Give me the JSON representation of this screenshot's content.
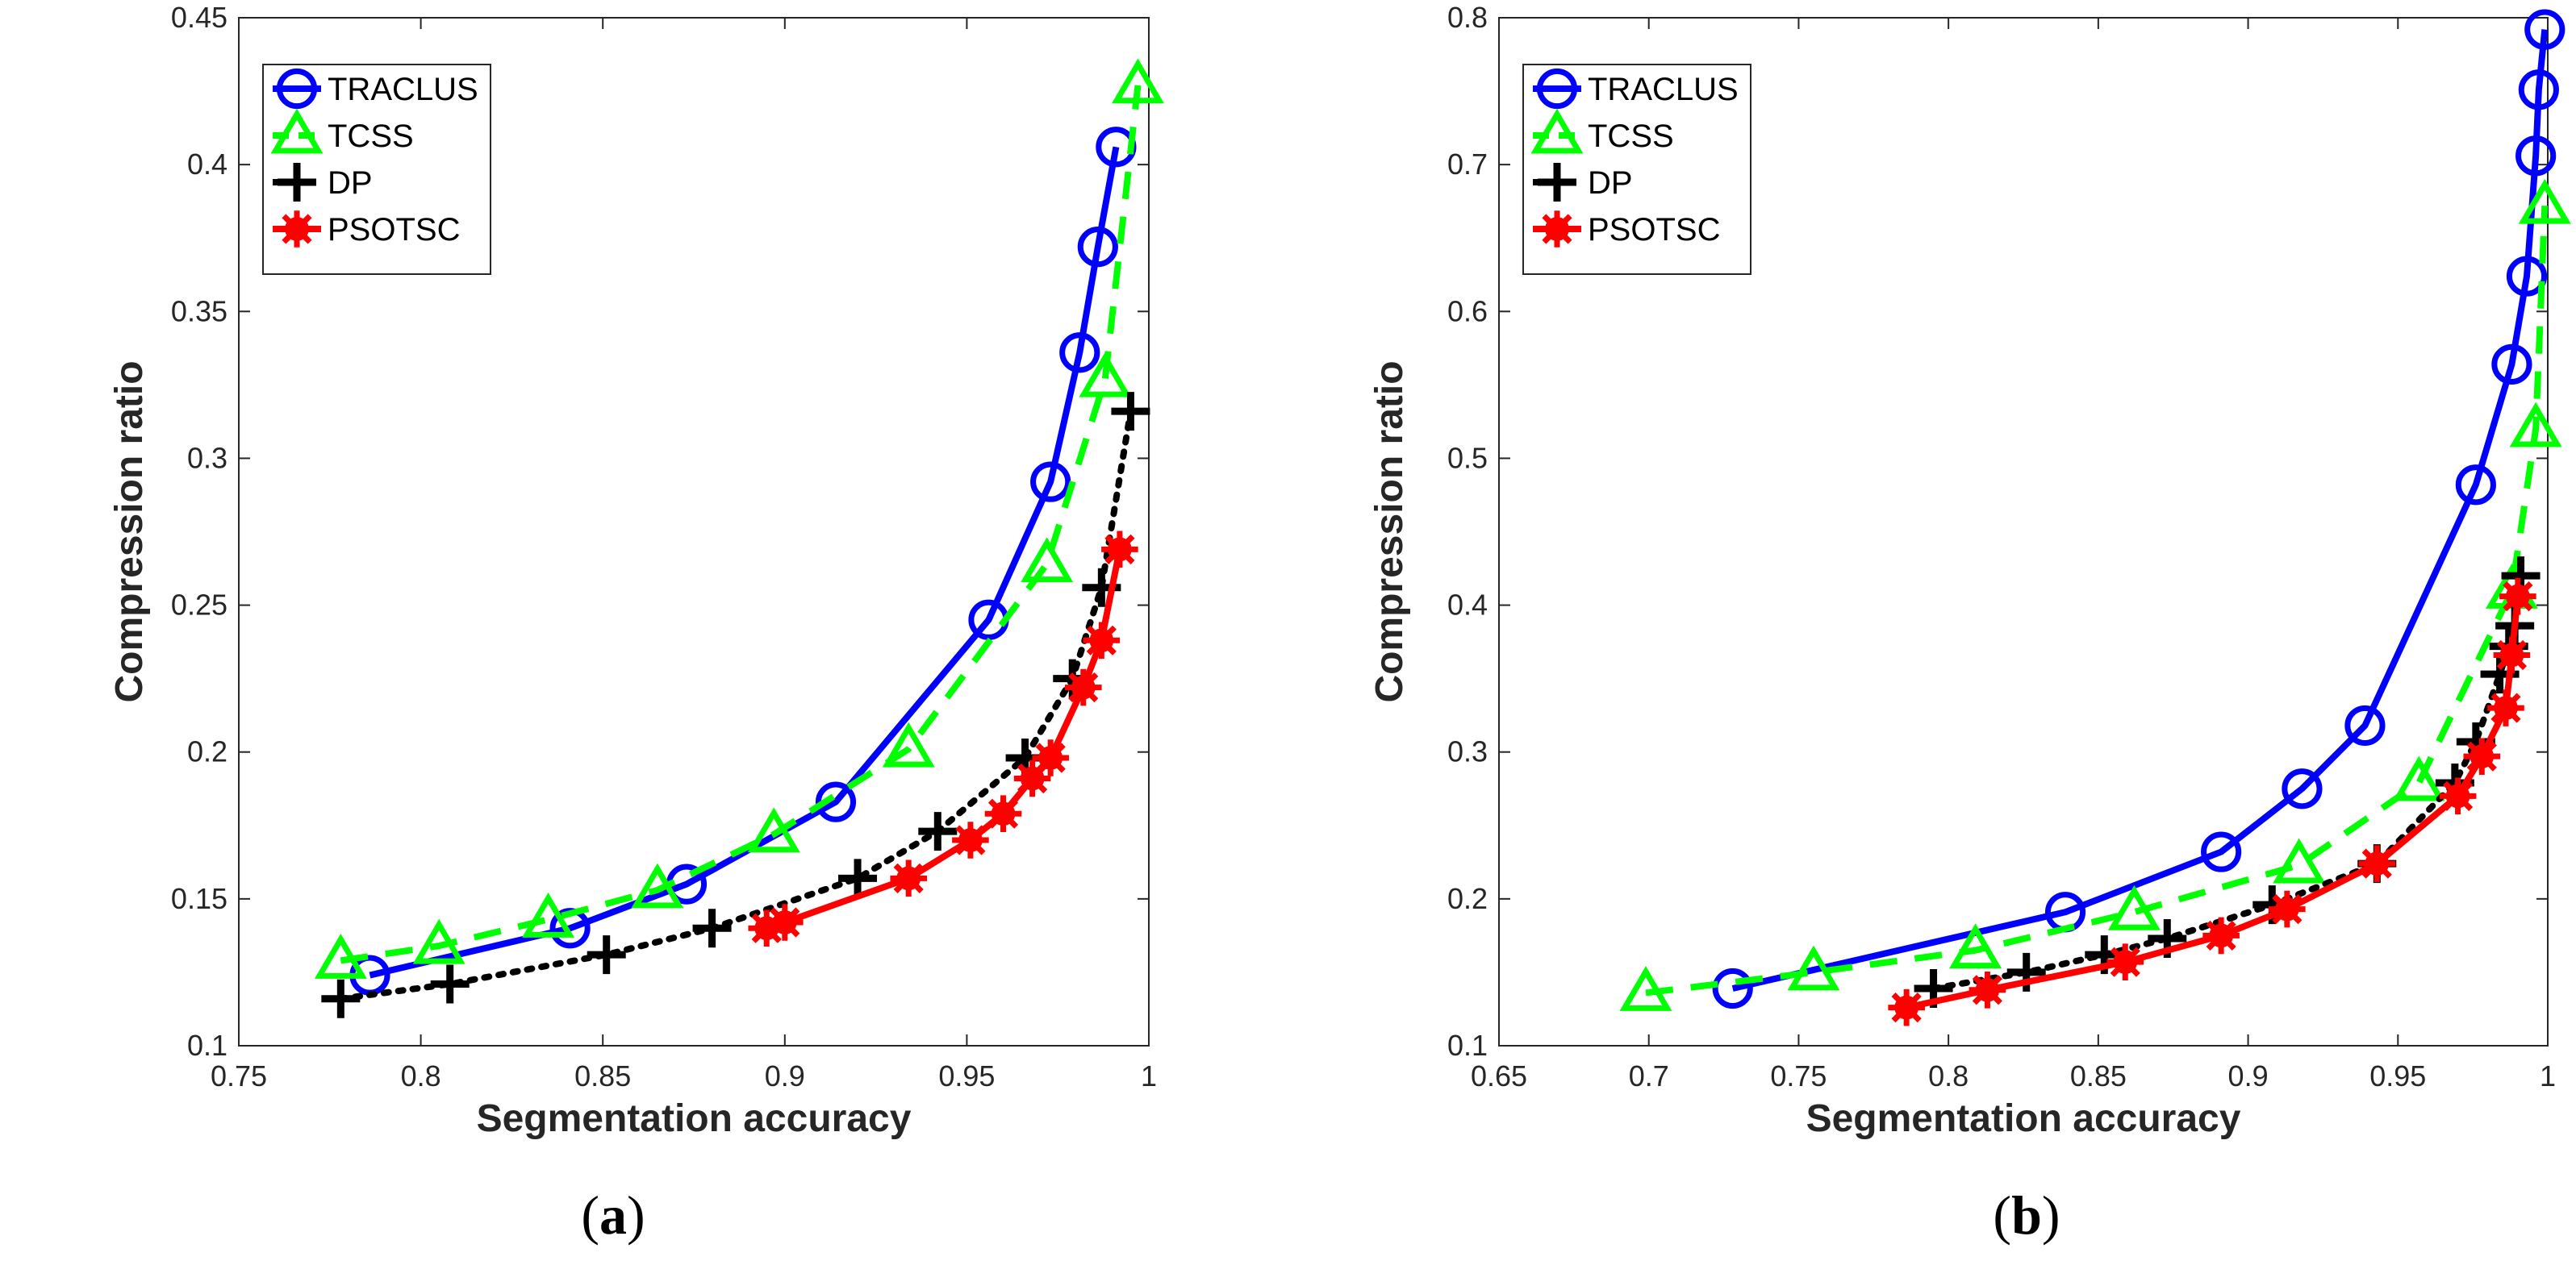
{
  "chart_data": [
    {
      "type": "line",
      "panel_id": "a",
      "caption": "(a)",
      "caption_letter": "a",
      "xlabel": "Segmentation accuracy",
      "ylabel": "Compression ratio",
      "xlim": [
        0.75,
        1.0
      ],
      "ylim": [
        0.1,
        0.45
      ],
      "xticks": [
        0.75,
        0.8,
        0.85,
        0.9,
        0.95,
        1.0
      ],
      "yticks": [
        0.1,
        0.15,
        0.2,
        0.25,
        0.3,
        0.35,
        0.4,
        0.45
      ],
      "xtick_labels": [
        "0.75",
        "0.8",
        "0.85",
        "0.9",
        "0.95",
        "1"
      ],
      "ytick_labels": [
        "0.1",
        "0.15",
        "0.2",
        "0.25",
        "0.3",
        "0.35",
        "0.4",
        "0.45"
      ],
      "legend_position": "top-left",
      "series": [
        {
          "name": "TRACLUS",
          "color": "#0000ff",
          "line": "solid",
          "marker": "circle",
          "x": [
            0.786,
            0.841,
            0.873,
            0.914,
            0.956,
            0.973,
            0.981,
            0.986,
            0.991
          ],
          "y": [
            0.124,
            0.14,
            0.155,
            0.183,
            0.245,
            0.292,
            0.336,
            0.372,
            0.406
          ]
        },
        {
          "name": "TCSS",
          "color": "#00ff00",
          "line": "dashed",
          "marker": "triangle",
          "x": [
            0.778,
            0.805,
            0.835,
            0.865,
            0.897,
            0.934,
            0.972,
            0.988,
            0.997
          ],
          "y": [
            0.129,
            0.134,
            0.143,
            0.153,
            0.172,
            0.201,
            0.264,
            0.327,
            0.427
          ]
        },
        {
          "name": "DP",
          "color": "#000000",
          "line": "dotted",
          "marker": "plus",
          "x": [
            0.778,
            0.808,
            0.851,
            0.88,
            0.92,
            0.942,
            0.966,
            0.979,
            0.987,
            0.995
          ],
          "y": [
            0.116,
            0.121,
            0.131,
            0.14,
            0.157,
            0.173,
            0.198,
            0.225,
            0.256,
            0.316
          ]
        },
        {
          "name": "PSOTSC",
          "color": "#ff0000",
          "line": "solid",
          "marker": "star",
          "x": [
            0.895,
            0.9,
            0.934,
            0.951,
            0.96,
            0.968,
            0.973,
            0.982,
            0.987,
            0.992
          ],
          "y": [
            0.14,
            0.142,
            0.157,
            0.17,
            0.179,
            0.191,
            0.198,
            0.222,
            0.238,
            0.269
          ]
        }
      ]
    },
    {
      "type": "line",
      "panel_id": "b",
      "caption": "(b)",
      "caption_letter": "b",
      "xlabel": "Segmentation accuracy",
      "ylabel": "Compression ratio",
      "xlim": [
        0.65,
        1.0
      ],
      "ylim": [
        0.1,
        0.8
      ],
      "xticks": [
        0.65,
        0.7,
        0.75,
        0.8,
        0.85,
        0.9,
        0.95,
        1.0
      ],
      "yticks": [
        0.1,
        0.2,
        0.3,
        0.4,
        0.5,
        0.6,
        0.7,
        0.8
      ],
      "xtick_labels": [
        "0.65",
        "0.7",
        "0.75",
        "0.8",
        "0.85",
        "0.9",
        "0.95",
        "1"
      ],
      "ytick_labels": [
        "0.1",
        "0.2",
        "0.3",
        "0.4",
        "0.5",
        "0.6",
        "0.7",
        "0.8"
      ],
      "legend_position": "top-left",
      "series": [
        {
          "name": "TRACLUS",
          "color": "#0000ff",
          "line": "solid",
          "marker": "circle",
          "x": [
            0.728,
            0.839,
            0.891,
            0.918,
            0.939,
            0.976,
            0.988,
            0.993,
            0.996,
            0.997,
            0.999
          ],
          "y": [
            0.139,
            0.191,
            0.232,
            0.275,
            0.318,
            0.482,
            0.564,
            0.624,
            0.706,
            0.751,
            0.792
          ]
        },
        {
          "name": "TCSS",
          "color": "#00ff00",
          "line": "dashed",
          "marker": "triangle",
          "x": [
            0.699,
            0.755,
            0.809,
            0.862,
            0.917,
            0.957,
            0.988,
            0.996,
            0.999
          ],
          "y": [
            0.136,
            0.15,
            0.165,
            0.191,
            0.223,
            0.279,
            0.41,
            0.52,
            0.672
          ]
        },
        {
          "name": "DP",
          "color": "#000000",
          "line": "dotted",
          "marker": "plus",
          "x": [
            0.795,
            0.826,
            0.852,
            0.873,
            0.908,
            0.943,
            0.969,
            0.976,
            0.984,
            0.987,
            0.989,
            0.991
          ],
          "y": [
            0.139,
            0.15,
            0.162,
            0.173,
            0.196,
            0.224,
            0.279,
            0.307,
            0.353,
            0.372,
            0.386,
            0.42
          ]
        },
        {
          "name": "PSOTSC",
          "color": "#ff0000",
          "line": "solid",
          "marker": "star",
          "x": [
            0.786,
            0.813,
            0.859,
            0.891,
            0.913,
            0.943,
            0.97,
            0.978,
            0.986,
            0.988,
            0.99
          ],
          "y": [
            0.126,
            0.138,
            0.157,
            0.175,
            0.193,
            0.224,
            0.27,
            0.297,
            0.33,
            0.366,
            0.406
          ]
        }
      ]
    }
  ]
}
